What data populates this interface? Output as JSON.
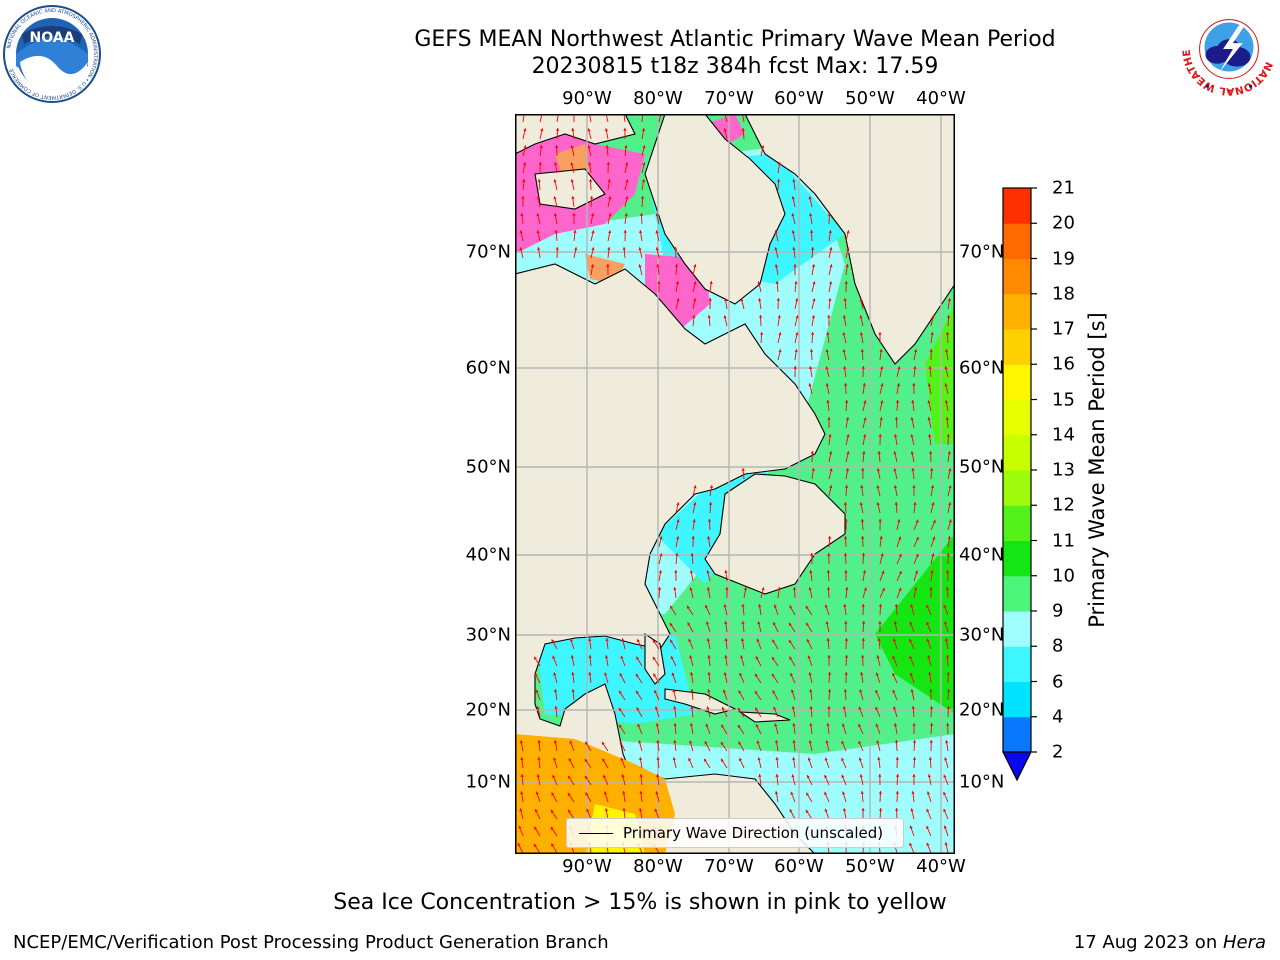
{
  "title": {
    "line1": "GEFS MEAN Northwest Atlantic Primary Wave Mean Period",
    "line2": "20230815 t18z 384h fcst   Max: 17.59"
  },
  "map": {
    "lon_labels": [
      "90°W",
      "80°W",
      "70°W",
      "60°W",
      "50°W",
      "40°W"
    ],
    "lat_labels": [
      "70°N",
      "60°N",
      "50°N",
      "40°N",
      "30°N",
      "20°N",
      "10°N"
    ],
    "legend": "Primary Wave Direction (unscaled)",
    "colors": {
      "land": "#efecdc",
      "grid": "#b5b5b5",
      "arrow": "#ff0000",
      "coast": "#000000"
    }
  },
  "colorbar": {
    "label": "Primary Wave Mean Period [s]",
    "ticks": [
      "2",
      "4",
      "6",
      "8",
      "9",
      "10",
      "11",
      "12",
      "13",
      "14",
      "15",
      "16",
      "17",
      "18",
      "19",
      "20",
      "21"
    ],
    "colors": [
      "#0a77ff",
      "#00e3ff",
      "#3ef6ff",
      "#9ffdfe",
      "#4cf479",
      "#14e614",
      "#52f21a",
      "#9efb0c",
      "#c8ff00",
      "#e8ff00",
      "#fff500",
      "#ffd000",
      "#ffb000",
      "#ff8a00",
      "#ff6a00",
      "#ff3000"
    ],
    "under_color": "#0b06f0"
  },
  "footnote": "Sea Ice Concentration > 15% is shown in pink to yellow",
  "credit_left": "NCEP/EMC/Verification Post Processing Product Generation Branch",
  "credit_date": "17 Aug 2023 on ",
  "credit_host": "Hera",
  "logos": {
    "noaa": "NOAA",
    "noaa_ring": "NATIONAL OCEANIC AND ATMOSPHERIC ADMINISTRATION • U.S. DEPARTMENT OF COMMERCE",
    "nws": "NATIONAL WEATHER SERVICE"
  }
}
